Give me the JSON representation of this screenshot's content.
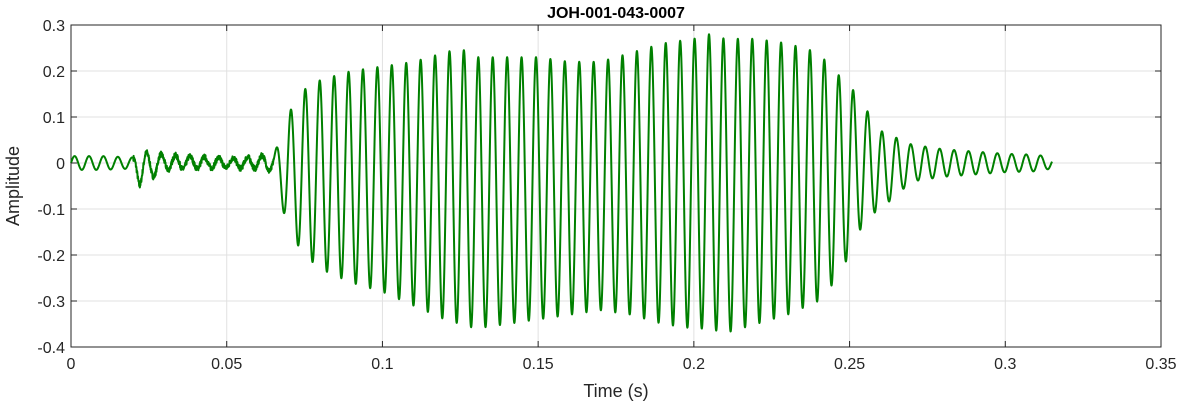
{
  "chart_data": {
    "type": "line",
    "title": "JOH-001-043-0007",
    "xlabel": "Time (s)",
    "ylabel": "Amplitude",
    "xlim": [
      0,
      0.35
    ],
    "ylim": [
      -0.4,
      0.3
    ],
    "x_ticks": [
      0,
      0.05,
      0.1,
      0.15,
      0.2,
      0.25,
      0.3,
      0.35
    ],
    "x_tick_labels": [
      "0",
      "0.05",
      "0.1",
      "0.15",
      "0.2",
      "0.25",
      "0.3",
      "0.35"
    ],
    "y_ticks": [
      -0.4,
      -0.3,
      -0.2,
      -0.1,
      0,
      0.1,
      0.2,
      0.3
    ],
    "y_tick_labels": [
      "-0.4",
      "-0.3",
      "-0.2",
      "-0.1",
      "0",
      "0.1",
      "0.2",
      "0.3"
    ],
    "grid": true,
    "legend": "none",
    "colors": {
      "line": "#008000",
      "grid": "#e1e1e1",
      "axis": "#262626"
    },
    "series": [
      {
        "x": [
          0,
          0.01,
          0.02,
          0.022,
          0.03,
          0.04,
          0.05,
          0.055,
          0.06,
          0.065,
          0.068,
          0.07,
          0.075,
          0.08,
          0.09,
          0.1,
          0.11,
          0.12,
          0.125,
          0.13,
          0.14,
          0.15,
          0.16,
          0.17,
          0.18,
          0.19,
          0.2,
          0.205,
          0.21,
          0.215,
          0.22,
          0.23,
          0.24,
          0.245,
          0.25,
          0.255,
          0.26,
          0.27,
          0.28,
          0.29,
          0.3,
          0.31,
          0.315
        ],
        "upper_envelope": [
          0.015,
          0.015,
          0.012,
          0.025,
          0.018,
          0.014,
          0.01,
          0.012,
          0.015,
          0.02,
          0.06,
          0.11,
          0.16,
          0.18,
          0.2,
          0.21,
          0.22,
          0.24,
          0.25,
          0.23,
          0.23,
          0.23,
          0.22,
          0.22,
          0.24,
          0.26,
          0.27,
          0.28,
          0.27,
          0.27,
          0.27,
          0.26,
          0.24,
          0.2,
          0.17,
          0.12,
          0.07,
          0.04,
          0.03,
          0.025,
          0.02,
          0.018,
          0.012
        ],
        "lower_envelope": [
          -0.015,
          -0.015,
          -0.012,
          -0.05,
          -0.015,
          -0.012,
          -0.01,
          -0.012,
          -0.012,
          -0.02,
          -0.1,
          -0.15,
          -0.2,
          -0.23,
          -0.26,
          -0.28,
          -0.31,
          -0.34,
          -0.35,
          -0.36,
          -0.35,
          -0.34,
          -0.33,
          -0.32,
          -0.33,
          -0.35,
          -0.36,
          -0.36,
          -0.37,
          -0.36,
          -0.35,
          -0.33,
          -0.3,
          -0.26,
          -0.2,
          -0.12,
          -0.1,
          -0.04,
          -0.03,
          -0.025,
          -0.02,
          -0.018,
          -0.012
        ],
        "f0_hz": 216
      }
    ]
  }
}
